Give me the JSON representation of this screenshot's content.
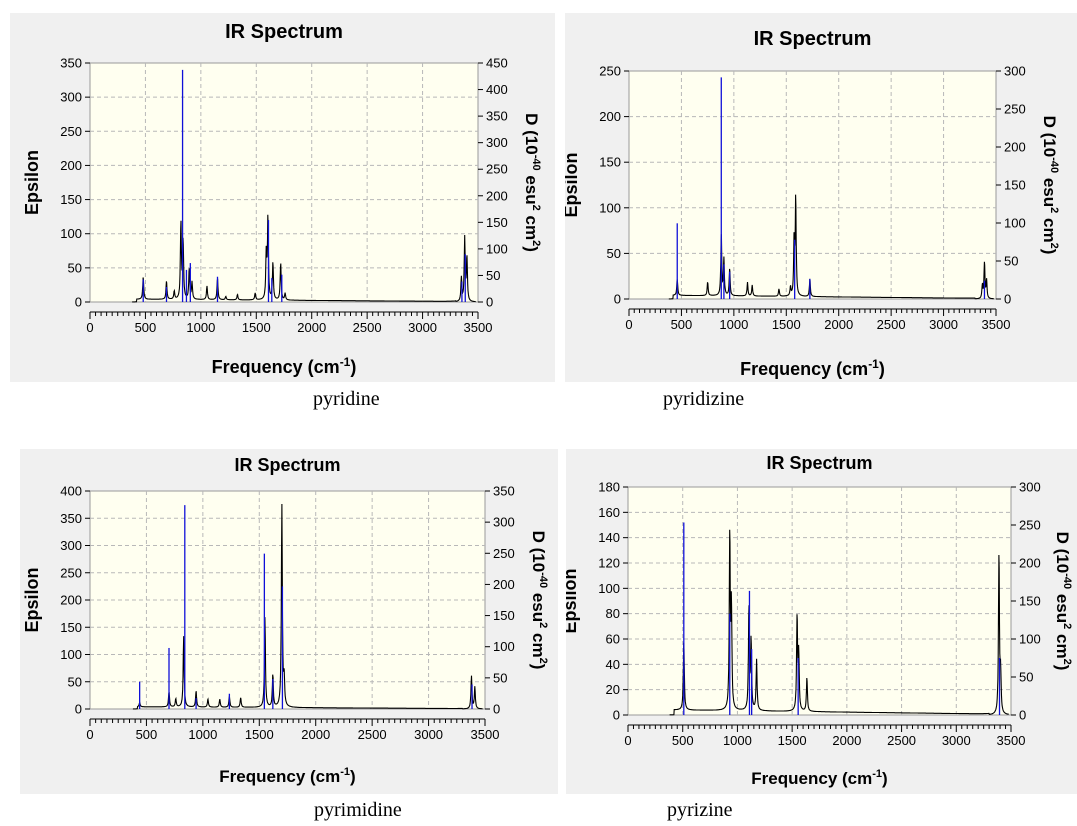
{
  "chart_data": [
    {
      "type": "line",
      "title": "IR Spectrum",
      "xlabel": "Frequency (cm",
      "xlabel_sup": "-1",
      "xlabel_end": ")",
      "ylabel": "Epsilon",
      "y2label_parts": [
        "D (10",
        "-40",
        " esu",
        "2",
        " cm",
        "2",
        ")"
      ],
      "xlim": [
        0,
        3500
      ],
      "ylim": [
        0,
        350
      ],
      "y2lim": [
        0,
        450
      ],
      "xticks": [
        0,
        500,
        1000,
        1500,
        2000,
        2500,
        3000,
        3500
      ],
      "yticks": [
        0,
        50,
        100,
        150,
        200,
        250,
        300,
        350
      ],
      "y2ticks": [
        0,
        50,
        100,
        150,
        200,
        250,
        300,
        350,
        400,
        450
      ],
      "grid": true,
      "caption": "pyridine",
      "peaks": [
        {
          "x": 400,
          "y": 2
        },
        {
          "x": 480,
          "y": 33
        },
        {
          "x": 690,
          "y": 27
        },
        {
          "x": 760,
          "y": 12
        },
        {
          "x": 820,
          "y": 113
        },
        {
          "x": 840,
          "y": 85
        },
        {
          "x": 895,
          "y": 45
        },
        {
          "x": 920,
          "y": 25
        },
        {
          "x": 1055,
          "y": 20
        },
        {
          "x": 1150,
          "y": 32
        },
        {
          "x": 1225,
          "y": 5
        },
        {
          "x": 1330,
          "y": 8
        },
        {
          "x": 1490,
          "y": 10
        },
        {
          "x": 1590,
          "y": 70
        },
        {
          "x": 1605,
          "y": 120
        },
        {
          "x": 1650,
          "y": 55
        },
        {
          "x": 1720,
          "y": 55
        },
        {
          "x": 1760,
          "y": 10
        },
        {
          "x": 3350,
          "y": 35
        },
        {
          "x": 3380,
          "y": 93
        },
        {
          "x": 3400,
          "y": 65
        }
      ],
      "sticks": [
        {
          "x": 480,
          "y": 33
        },
        {
          "x": 690,
          "y": 22
        },
        {
          "x": 835,
          "y": 340
        },
        {
          "x": 870,
          "y": 47
        },
        {
          "x": 905,
          "y": 57
        },
        {
          "x": 1150,
          "y": 37
        },
        {
          "x": 1610,
          "y": 120
        },
        {
          "x": 1640,
          "y": 35
        },
        {
          "x": 1730,
          "y": 40
        },
        {
          "x": 3355,
          "y": 30
        },
        {
          "x": 3385,
          "y": 70
        }
      ]
    },
    {
      "type": "line",
      "title": "IR Spectrum",
      "xlabel": "Frequency (cm",
      "xlabel_sup": "-1",
      "xlabel_end": ")",
      "ylabel": "Epsilon",
      "y2label_parts": [
        "D (10",
        "-40",
        " esu",
        "2",
        " cm",
        "2",
        ")"
      ],
      "xlim": [
        0,
        3500
      ],
      "ylim": [
        0,
        250
      ],
      "y2lim": [
        0,
        300
      ],
      "xticks": [
        0,
        500,
        1000,
        1500,
        2000,
        2500,
        3000,
        3500
      ],
      "yticks": [
        0,
        50,
        100,
        150,
        200,
        250
      ],
      "y2ticks": [
        0,
        50,
        100,
        150,
        200,
        250,
        300
      ],
      "grid": true,
      "caption": "pyridizine",
      "peaks": [
        {
          "x": 400,
          "y": 2
        },
        {
          "x": 460,
          "y": 18
        },
        {
          "x": 750,
          "y": 15
        },
        {
          "x": 880,
          "y": 68
        },
        {
          "x": 905,
          "y": 40
        },
        {
          "x": 960,
          "y": 30
        },
        {
          "x": 1130,
          "y": 15
        },
        {
          "x": 1175,
          "y": 12
        },
        {
          "x": 1430,
          "y": 8
        },
        {
          "x": 1540,
          "y": 10
        },
        {
          "x": 1575,
          "y": 62
        },
        {
          "x": 1590,
          "y": 108
        },
        {
          "x": 1725,
          "y": 20
        },
        {
          "x": 3370,
          "y": 15
        },
        {
          "x": 3390,
          "y": 40
        },
        {
          "x": 3410,
          "y": 20
        }
      ],
      "sticks": [
        {
          "x": 460,
          "y": 83
        },
        {
          "x": 880,
          "y": 243
        },
        {
          "x": 905,
          "y": 38
        },
        {
          "x": 960,
          "y": 30
        },
        {
          "x": 1580,
          "y": 65
        },
        {
          "x": 1725,
          "y": 22
        },
        {
          "x": 3390,
          "y": 20
        }
      ]
    },
    {
      "type": "line",
      "title": "IR Spectrum",
      "xlabel": "Frequency (cm",
      "xlabel_sup": "-1",
      "xlabel_end": ")",
      "ylabel": "Epsilon",
      "y2label_parts": [
        "D (10",
        "-40",
        " esu",
        "2",
        " cm",
        "2",
        ")"
      ],
      "xlim": [
        0,
        3500
      ],
      "ylim": [
        0,
        400
      ],
      "y2lim": [
        0,
        350
      ],
      "xticks": [
        0,
        500,
        1000,
        1500,
        2000,
        2500,
        3000,
        3500
      ],
      "yticks": [
        0,
        50,
        100,
        150,
        200,
        250,
        300,
        350,
        400
      ],
      "y2ticks": [
        0,
        50,
        100,
        150,
        200,
        250,
        300,
        350
      ],
      "grid": true,
      "caption": "pyrimidine",
      "peaks": [
        {
          "x": 400,
          "y": 2
        },
        {
          "x": 440,
          "y": 8
        },
        {
          "x": 700,
          "y": 28
        },
        {
          "x": 760,
          "y": 15
        },
        {
          "x": 830,
          "y": 130
        },
        {
          "x": 940,
          "y": 30
        },
        {
          "x": 1045,
          "y": 15
        },
        {
          "x": 1150,
          "y": 15
        },
        {
          "x": 1235,
          "y": 20
        },
        {
          "x": 1335,
          "y": 18
        },
        {
          "x": 1550,
          "y": 165
        },
        {
          "x": 1620,
          "y": 60
        },
        {
          "x": 1700,
          "y": 370
        },
        {
          "x": 1720,
          "y": 50
        },
        {
          "x": 3380,
          "y": 60
        },
        {
          "x": 3410,
          "y": 40
        }
      ],
      "sticks": [
        {
          "x": 440,
          "y": 50
        },
        {
          "x": 700,
          "y": 112
        },
        {
          "x": 840,
          "y": 374
        },
        {
          "x": 940,
          "y": 20
        },
        {
          "x": 1235,
          "y": 28
        },
        {
          "x": 1545,
          "y": 285
        },
        {
          "x": 1620,
          "y": 55
        },
        {
          "x": 1705,
          "y": 225
        },
        {
          "x": 3385,
          "y": 45
        }
      ]
    },
    {
      "type": "line",
      "title": "IR Spectrum",
      "xlabel": "Frequency (cm",
      "xlabel_sup": "-1",
      "xlabel_end": ")",
      "ylabel": "Epsilon",
      "y2label_parts": [
        "D (10",
        "-40",
        " esu",
        "2",
        " cm",
        "2",
        ")"
      ],
      "xlim": [
        0,
        3500
      ],
      "ylim": [
        0,
        180
      ],
      "y2lim": [
        0,
        300
      ],
      "xticks": [
        0,
        500,
        1000,
        1500,
        2000,
        2500,
        3000,
        3500
      ],
      "yticks": [
        0,
        20,
        40,
        60,
        80,
        100,
        120,
        140,
        160,
        180
      ],
      "y2ticks": [
        0,
        50,
        100,
        150,
        200,
        250,
        300
      ],
      "grid": true,
      "caption": "pyrizine",
      "peaks": [
        {
          "x": 400,
          "y": 1
        },
        {
          "x": 510,
          "y": 55
        },
        {
          "x": 930,
          "y": 140
        },
        {
          "x": 945,
          "y": 80
        },
        {
          "x": 1105,
          "y": 82
        },
        {
          "x": 1125,
          "y": 55
        },
        {
          "x": 1175,
          "y": 40
        },
        {
          "x": 1545,
          "y": 75
        },
        {
          "x": 1560,
          "y": 45
        },
        {
          "x": 1635,
          "y": 27
        },
        {
          "x": 3390,
          "y": 128
        },
        {
          "x": 3405,
          "y": 30
        }
      ],
      "sticks": [
        {
          "x": 510,
          "y": 152
        },
        {
          "x": 930,
          "y": 80
        },
        {
          "x": 1110,
          "y": 98
        },
        {
          "x": 1130,
          "y": 52
        },
        {
          "x": 1555,
          "y": 45
        },
        {
          "x": 3395,
          "y": 45
        }
      ]
    }
  ]
}
